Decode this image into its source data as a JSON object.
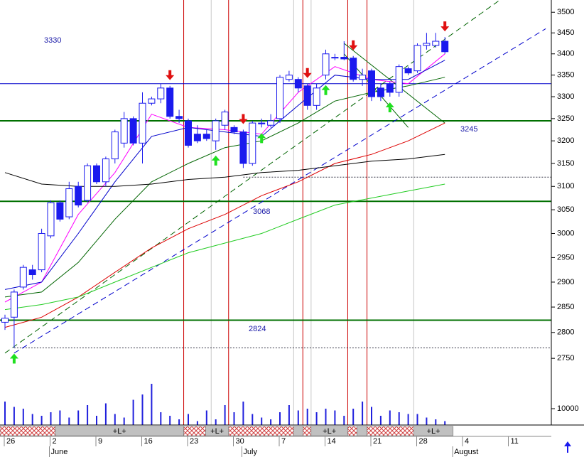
{
  "chart_data": {
    "type": "candlestick",
    "categories": [
      "26",
      null,
      null,
      null,
      null,
      "2",
      null,
      null,
      null,
      null,
      "9",
      null,
      null,
      null,
      null,
      "16",
      null,
      null,
      null,
      null,
      "23",
      null,
      null,
      null,
      null,
      "30",
      null,
      null,
      null,
      null,
      "7",
      null,
      null,
      null,
      null,
      "14",
      null,
      null,
      null,
      null,
      "21",
      null,
      null,
      null,
      null,
      "28",
      null,
      null,
      null,
      null,
      "4",
      null,
      null,
      null,
      null,
      "11",
      null,
      null,
      null,
      null
    ],
    "months": [
      {
        "index": 5,
        "label": "June"
      },
      {
        "index": 26,
        "label": "July"
      },
      {
        "index": 49,
        "label": "August"
      }
    ],
    "open": [
      2820,
      2830,
      2890,
      2925,
      2925,
      2995,
      3065,
      3035,
      3100,
      3070,
      3145,
      3110,
      3160,
      3195,
      3250,
      3195,
      3285,
      3295,
      3320,
      3255,
      3245,
      3215,
      3215,
      3200,
      3235,
      3230,
      3220,
      3150,
      3240,
      3235,
      3250,
      3340,
      3340,
      3325,
      3280,
      3350,
      3390,
      3392,
      3390,
      3340,
      3360,
      3320,
      3330,
      3310,
      3365,
      3360,
      3420,
      3420,
      3430,
      null,
      null,
      null,
      null,
      null,
      null,
      null,
      null,
      null,
      null,
      null
    ],
    "high": [
      2835,
      2885,
      2935,
      2935,
      3010,
      3070,
      3070,
      3110,
      3110,
      3150,
      3150,
      3165,
      3225,
      3265,
      3255,
      3310,
      3300,
      3330,
      3325,
      3270,
      3250,
      3235,
      3225,
      3250,
      3270,
      3235,
      3225,
      3245,
      3250,
      3260,
      3350,
      3360,
      3345,
      3330,
      3330,
      3410,
      3400,
      3430,
      3395,
      3365,
      3365,
      3330,
      3335,
      3375,
      3370,
      3425,
      3450,
      3450,
      3440,
      null,
      null,
      null,
      null,
      null,
      null,
      null,
      null,
      null,
      null,
      null
    ],
    "low": [
      2805,
      2770,
      2885,
      2905,
      2920,
      2990,
      3025,
      3030,
      3055,
      3065,
      3105,
      3100,
      3150,
      3185,
      3190,
      3150,
      3280,
      3285,
      3250,
      3240,
      3185,
      3195,
      3200,
      3180,
      3225,
      3215,
      3140,
      3145,
      3230,
      3230,
      3240,
      3335,
      3310,
      3270,
      3270,
      3340,
      3385,
      3385,
      3335,
      3325,
      3290,
      3290,
      3300,
      3300,
      3350,
      3355,
      3410,
      3415,
      3400,
      null,
      null,
      null,
      null,
      null,
      null,
      null,
      null,
      null,
      null,
      null
    ],
    "close": [
      2828,
      2880,
      2930,
      2915,
      3000,
      3065,
      3030,
      3095,
      3060,
      3145,
      3110,
      3160,
      3220,
      3250,
      3195,
      3285,
      3295,
      3320,
      3255,
      3250,
      3190,
      3200,
      3205,
      3245,
      3265,
      3220,
      3150,
      3240,
      3238,
      3245,
      3345,
      3350,
      3320,
      3280,
      3320,
      3400,
      3392,
      3388,
      3340,
      3350,
      3300,
      3300,
      3310,
      3370,
      3355,
      3420,
      3425,
      3430,
      3405,
      null,
      null,
      null,
      null,
      null,
      null,
      null,
      null,
      null,
      null,
      null
    ],
    "volume": [
      14000,
      11000,
      10000,
      7000,
      6000,
      8000,
      9000,
      5000,
      9000,
      12000,
      6000,
      13000,
      7000,
      5000,
      15000,
      18000,
      24000,
      8000,
      6000,
      4000,
      7000,
      3000,
      9000,
      4000,
      12000,
      8000,
      14000,
      7000,
      5000,
      4000,
      8000,
      12000,
      9000,
      10000,
      8000,
      10000,
      9000,
      6000,
      10000,
      14000,
      11000,
      6000,
      9000,
      8000,
      7000,
      7000,
      5000,
      4000,
      3000,
      null,
      null,
      null,
      null,
      null,
      null,
      null,
      null,
      null,
      null,
      null
    ],
    "candle_color": "#1a1aee",
    "volume_color": "#2020dd",
    "ylim": [
      2675,
      3530
    ],
    "log_scale": true,
    "yticks": [
      2750,
      2800,
      2850,
      2900,
      2950,
      3000,
      3050,
      3100,
      3150,
      3200,
      3250,
      3300,
      3350,
      3400,
      3450,
      3500
    ],
    "y2lim": [
      0,
      40000
    ],
    "y2ticks": [
      10000
    ],
    "lines": [
      {
        "color": "#ff00ff",
        "x": [
          0,
          4,
          8,
          12,
          16,
          20,
          24,
          28,
          32,
          36,
          40,
          44,
          48
        ],
        "values": [
          2860,
          2900,
          3040,
          3130,
          3260,
          3230,
          3225,
          3215,
          3310,
          3370,
          3340,
          3330,
          3400
        ]
      },
      {
        "color": "#0000cc",
        "x": [
          0,
          4,
          8,
          12,
          16,
          20,
          24,
          28,
          32,
          36,
          40,
          44,
          48
        ],
        "values": [
          2885,
          2900,
          3000,
          3110,
          3210,
          3230,
          3220,
          3210,
          3280,
          3350,
          3340,
          3340,
          3385
        ]
      },
      {
        "color": "#006400",
        "x": [
          0,
          4,
          8,
          12,
          16,
          20,
          24,
          28,
          32,
          36,
          40,
          44,
          48
        ],
        "values": [
          2870,
          2880,
          2940,
          3030,
          3110,
          3150,
          3185,
          3200,
          3240,
          3290,
          3310,
          3325,
          3345
        ]
      },
      {
        "color": "#dd0000",
        "x": [
          0,
          4,
          8,
          12,
          16,
          20,
          24,
          28,
          32,
          36,
          40,
          44,
          48
        ],
        "values": [
          2810,
          2830,
          2870,
          2920,
          2970,
          3010,
          3040,
          3080,
          3110,
          3150,
          3170,
          3200,
          3240
        ]
      },
      {
        "color": "#22cc22",
        "x": [
          0,
          4,
          8,
          12,
          16,
          20,
          24,
          28,
          32,
          36,
          40,
          44,
          48
        ],
        "values": [
          2845,
          2855,
          2870,
          2900,
          2930,
          2960,
          2980,
          3000,
          3030,
          3060,
          3075,
          3090,
          3105
        ]
      },
      {
        "color": "#000000",
        "x": [
          0,
          4,
          8,
          12,
          16,
          20,
          24,
          28,
          32,
          36,
          40,
          44,
          48
        ],
        "values": [
          3130,
          3105,
          3100,
          3100,
          3105,
          3115,
          3120,
          3130,
          3135,
          3145,
          3155,
          3160,
          3170
        ]
      }
    ],
    "trendlines": [
      {
        "color": "#006400",
        "x": [
          0,
          54
        ],
        "values": [
          2760,
          3530
        ]
      },
      {
        "color": "#0000cc",
        "x": [
          1,
          59
        ],
        "values": [
          2760,
          3460
        ]
      },
      {
        "color": "#006400",
        "x": [
          37,
          48
        ],
        "values": [
          3425,
          3240
        ]
      },
      {
        "color": "#006400",
        "x": [
          37,
          44
        ],
        "values": [
          3400,
          3230
        ]
      }
    ],
    "levels": [
      {
        "value": 3330,
        "color": "#0000cc"
      },
      {
        "value": 3245,
        "color": "#007000"
      },
      {
        "value": 3068,
        "color": "#007000"
      },
      {
        "value": 2824,
        "color": "#007000"
      }
    ],
    "dotted_levels": [
      {
        "value": 3120,
        "from": 26
      },
      {
        "value": 2770,
        "from": 1
      }
    ],
    "red_lines": [
      19.5,
      24.4,
      32.5,
      37.4,
      39.5
    ],
    "gray_lines": [
      22.5,
      31.5,
      33.4,
      44.6
    ],
    "sell_signals": [
      18,
      26,
      33,
      38,
      48
    ],
    "buy_signals": [
      1,
      23,
      28,
      35,
      42
    ],
    "bands": [
      {
        "from": -0.54,
        "to": 5.5,
        "kind": "red"
      },
      {
        "from": 5.5,
        "to": 19.5,
        "kind": "gray",
        "label": "+L+"
      },
      {
        "from": 19.5,
        "to": 21.9,
        "kind": "red"
      },
      {
        "from": 21.9,
        "to": 24.4,
        "kind": "gray",
        "label": "+L+"
      },
      {
        "from": 24.4,
        "to": 31.5,
        "kind": "red"
      },
      {
        "from": 31.5,
        "to": 32.5,
        "kind": "gray"
      },
      {
        "from": 32.5,
        "to": 33.4,
        "kind": "red"
      },
      {
        "from": 33.4,
        "to": 37.4,
        "kind": "gray",
        "label": "+L+"
      },
      {
        "from": 37.4,
        "to": 38.4,
        "kind": "red"
      },
      {
        "from": 38.4,
        "to": 39.5,
        "kind": "gray"
      },
      {
        "from": 39.5,
        "to": 44.6,
        "kind": "red"
      },
      {
        "from": 44.6,
        "to": 48.9,
        "kind": "gray",
        "label": "+L+"
      }
    ]
  }
}
